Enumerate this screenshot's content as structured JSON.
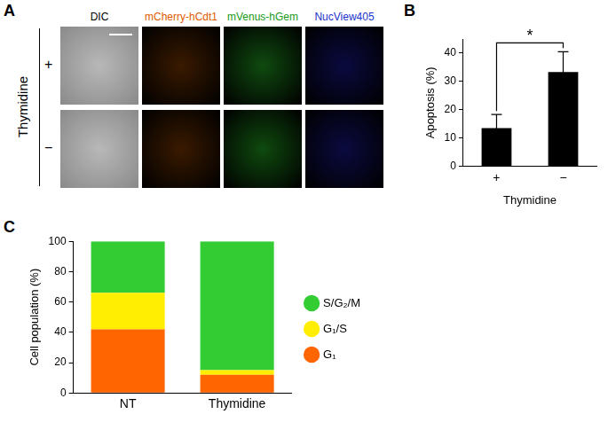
{
  "panel_labels": [
    "A",
    "B",
    "C"
  ],
  "image_panel": {
    "columns": [
      "DIC",
      "mCherry-hCdt1",
      "mVenus-hGem",
      "NucView405"
    ],
    "row_title": "Thymidine",
    "rows": [
      "+",
      "−"
    ]
  },
  "chart_data": [
    {
      "type": "bar",
      "categories": [
        "+",
        "−"
      ],
      "values": [
        13.5,
        33.3
      ],
      "errors": [
        4.8,
        7.2
      ],
      "color": "#000000",
      "y_label": "Apoptosis (%)",
      "x_label": "Thymidine",
      "ylim": [
        0,
        45
      ],
      "yticks": [
        0,
        10,
        20,
        30,
        40
      ],
      "grid": false,
      "annotation": "*"
    },
    {
      "type": "bar",
      "stacked": true,
      "categories": [
        "NT",
        "Thymidine"
      ],
      "series": [
        {
          "name": "G₁",
          "color": "#ff6600",
          "values": [
            42,
            12
          ]
        },
        {
          "name": "G₁/S",
          "color": "#ffee00",
          "values": [
            24,
            3
          ]
        },
        {
          "name": "S/G₂/M",
          "color": "#33cc33",
          "values": [
            34,
            85
          ]
        }
      ],
      "y_label": "Cell population (%)",
      "ylim": [
        0,
        100
      ],
      "yticks": [
        0,
        20,
        40,
        60,
        80,
        100
      ],
      "grid": false,
      "legend": "right"
    }
  ]
}
